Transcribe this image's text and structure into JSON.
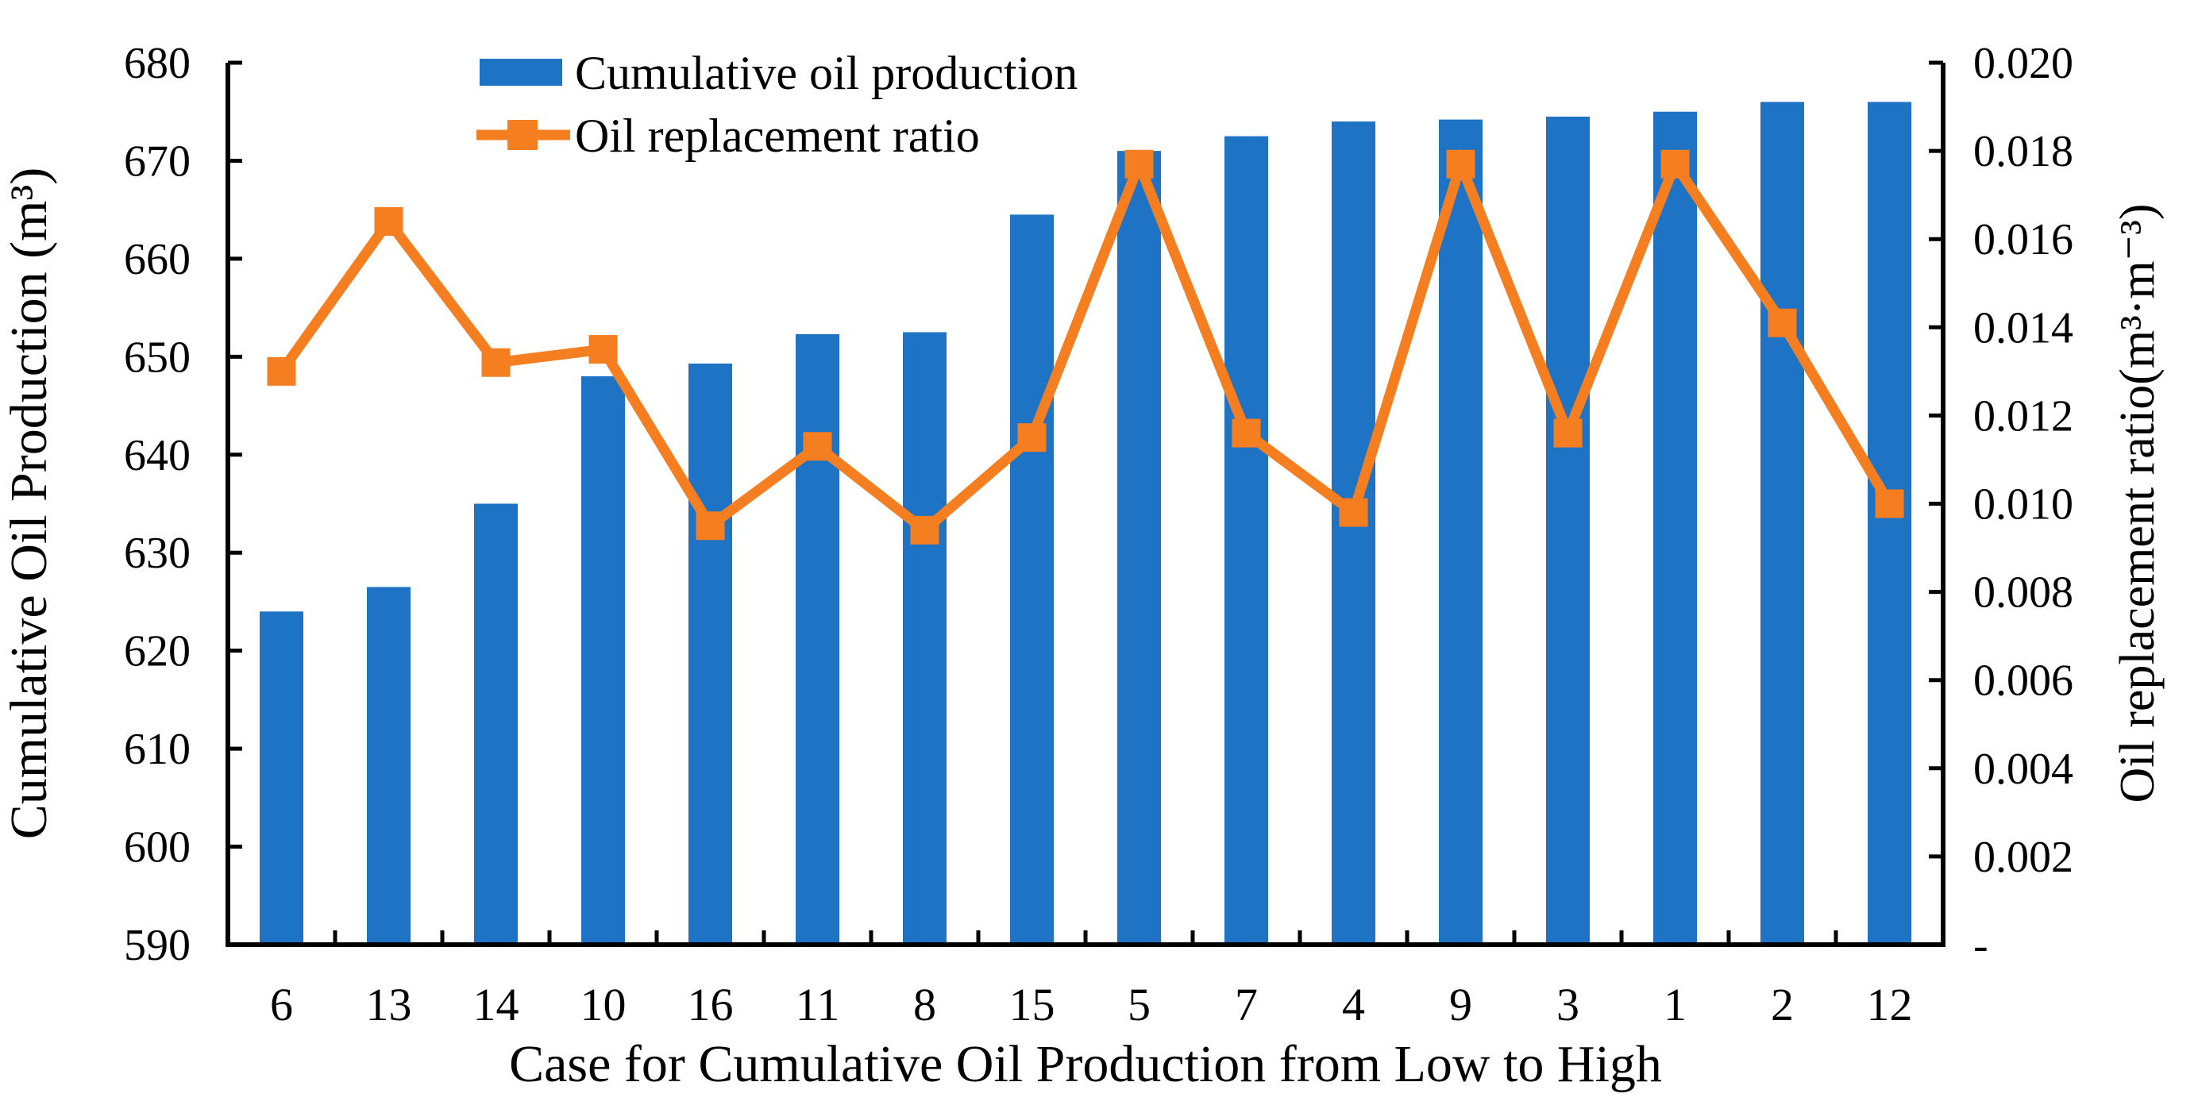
{
  "chart_data": {
    "type": "bar",
    "title": "",
    "categories": [
      "6",
      "13",
      "14",
      "10",
      "16",
      "11",
      "8",
      "15",
      "5",
      "7",
      "4",
      "9",
      "3",
      "1",
      "2",
      "12"
    ],
    "series": [
      {
        "name": "Cumulative oil production",
        "chart_type": "bar",
        "axis": "left",
        "color": "#1E73C4",
        "values": [
          624,
          626.5,
          635,
          648,
          649.3,
          652.3,
          652.5,
          664.5,
          671,
          672.5,
          674,
          674.2,
          674.5,
          675,
          676,
          676
        ]
      },
      {
        "name": "Oil replacement ratio",
        "chart_type": "line",
        "axis": "right",
        "color": "#F57E20",
        "marker": "square",
        "values": [
          0.013,
          0.0164,
          0.0132,
          0.0135,
          0.0095,
          0.0113,
          0.0094,
          0.0115,
          0.0177,
          0.0116,
          0.0098,
          0.0177,
          0.0116,
          0.0177,
          0.0141,
          0.01
        ]
      }
    ],
    "xlabel": "Case for Cumulative Oil Production from Low to High",
    "left_axis": {
      "label": "Cumulative Oil Production (m³)",
      "min": 590,
      "max": 680,
      "tick_labels": [
        "680",
        "670",
        "660",
        "650",
        "640",
        "630",
        "620",
        "610",
        "600",
        "590"
      ]
    },
    "right_axis": {
      "label": "Oil replacement ratio(m³·m⁻³)",
      "min": 0,
      "max": 0.02,
      "tick_labels": [
        "0.020",
        "0.018",
        "0.016",
        "0.014",
        "0.012",
        "0.010",
        "0.008",
        "0.006",
        "0.004",
        "0.002",
        "-"
      ]
    },
    "legend": {
      "position": "top-center",
      "items": [
        "Cumulative oil production",
        "Oil replacement ratio"
      ]
    },
    "grid": false,
    "colors": {
      "bar_blue": "#1E73C4",
      "line_orange": "#F57E20",
      "axis_black": "#000000",
      "background": "#FFFFFF"
    }
  }
}
